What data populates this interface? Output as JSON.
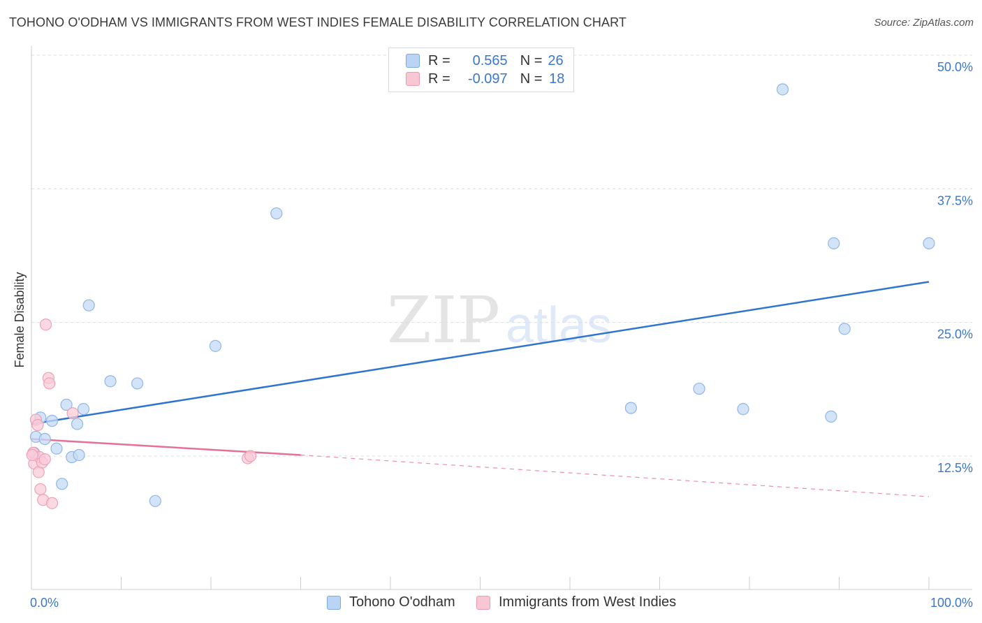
{
  "title": "TOHONO O'ODHAM VS IMMIGRANTS FROM WEST INDIES FEMALE DISABILITY CORRELATION CHART",
  "source": "Source: ZipAtlas.com",
  "watermark": {
    "zip": "ZIP",
    "atlas": "atlas"
  },
  "legend_top": {
    "rows": [
      {
        "r_label": "R =",
        "r_value": "0.565",
        "n_label": "N =",
        "n_value": "26"
      },
      {
        "r_label": "R =",
        "r_value": "-0.097",
        "n_label": "N =",
        "n_value": "18"
      }
    ]
  },
  "colors": {
    "blue": "#2f74d0",
    "blue_fill": "#c6dbf6",
    "blue_stroke": "#8fb6e8",
    "pink": "#e5709a",
    "pink_fill": "#f9cbd8",
    "pink_stroke": "#eea1b8",
    "grid": "#dddddd",
    "tick_text": "#3b78c9"
  },
  "chart_data": {
    "type": "scatter",
    "title": "TOHONO O'ODHAM VS IMMIGRANTS FROM WEST INDIES FEMALE DISABILITY CORRELATION CHART",
    "xlabel": "",
    "ylabel": "Female Disability",
    "xlim": [
      0,
      100
    ],
    "ylim": [
      0,
      52
    ],
    "x_tick_labels": [
      "0.0%",
      "100.0%"
    ],
    "y_ticks": [
      12.5,
      25.0,
      37.5,
      50.0
    ],
    "y_tick_labels": [
      "12.5%",
      "25.0%",
      "37.5%",
      "50.0%"
    ],
    "grid": true,
    "legend": "bottom-center",
    "series": [
      {
        "name": "Tohono O'odham",
        "color": "blue",
        "points": [
          [
            0.5,
            14.3
          ],
          [
            1.0,
            16.1
          ],
          [
            1.5,
            14.1
          ],
          [
            2.3,
            15.8
          ],
          [
            2.8,
            13.2
          ],
          [
            3.4,
            9.9
          ],
          [
            3.9,
            17.3
          ],
          [
            4.5,
            12.4
          ],
          [
            5.1,
            15.5
          ],
          [
            5.3,
            12.6
          ],
          [
            5.8,
            16.9
          ],
          [
            6.4,
            26.6
          ],
          [
            8.8,
            19.5
          ],
          [
            11.8,
            19.3
          ],
          [
            13.8,
            8.3
          ],
          [
            20.5,
            22.8
          ],
          [
            27.3,
            35.2
          ],
          [
            66.8,
            17.0
          ],
          [
            74.4,
            18.8
          ],
          [
            79.3,
            16.9
          ],
          [
            83.7,
            46.8
          ],
          [
            89.1,
            16.2
          ],
          [
            89.4,
            32.4
          ],
          [
            90.6,
            24.4
          ],
          [
            100.0,
            32.4
          ],
          [
            0.3,
            12.8
          ]
        ],
        "trend": {
          "x0": 0,
          "y0": 15.5,
          "x1": 100,
          "y1": 28.8,
          "dashed_from": null
        }
      },
      {
        "name": "Immigrants from West Indies",
        "color": "pink",
        "points": [
          [
            0.2,
            12.8
          ],
          [
            0.3,
            11.8
          ],
          [
            0.5,
            15.9
          ],
          [
            0.7,
            15.4
          ],
          [
            0.8,
            11.0
          ],
          [
            0.9,
            12.4
          ],
          [
            1.0,
            9.4
          ],
          [
            1.2,
            11.9
          ],
          [
            1.3,
            8.4
          ],
          [
            1.5,
            12.2
          ],
          [
            1.6,
            24.8
          ],
          [
            1.9,
            19.8
          ],
          [
            2.0,
            19.3
          ],
          [
            2.3,
            8.1
          ],
          [
            4.6,
            16.5
          ],
          [
            24.1,
            12.3
          ],
          [
            24.4,
            12.5
          ],
          [
            0.1,
            12.6
          ]
        ],
        "trend": {
          "x0": 0,
          "y0": 14.1,
          "x1": 30,
          "y1": 12.6,
          "dashed_to_x": 100,
          "dashed_to_y": 8.7
        }
      }
    ]
  },
  "bottom_legend": [
    {
      "label": "Tohono O'odham"
    },
    {
      "label": "Immigrants from West Indies"
    }
  ]
}
